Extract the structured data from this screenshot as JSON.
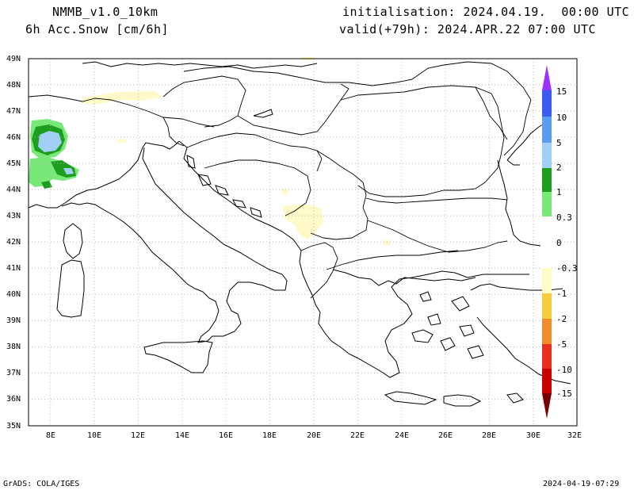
{
  "header": {
    "model": "NMMB_v1.0_10km",
    "variable": "6h Acc.Snow [cm/6h]",
    "init": "initialisation: 2024.04.19.  00:00 UTC",
    "valid": "valid(+79h): 2024.APR.22 07:00 UTC"
  },
  "footer": {
    "left": "GrADS: COLA/IGES",
    "right": "2024-04-19-07:29"
  },
  "map": {
    "lat_labels": [
      "49N",
      "48N",
      "47N",
      "46N",
      "45N",
      "44N",
      "43N",
      "42N",
      "41N",
      "40N",
      "39N",
      "38N",
      "37N",
      "36N",
      "35N"
    ],
    "lon_labels": [
      "8E",
      "10E",
      "12E",
      "14E",
      "16E",
      "18E",
      "20E",
      "22E",
      "24E",
      "26E",
      "28E",
      "30E",
      "32E"
    ]
  },
  "colorbar": {
    "labels": [
      "15",
      "10",
      "5",
      "2",
      "1",
      "0.3",
      "0",
      "-0.3",
      "-1",
      "-2",
      "-5",
      "-10",
      "-15"
    ],
    "colors": {
      "top_arrow": "#9b30ff",
      "c15": "#3c5cf0",
      "c10": "#5b9cf0",
      "c5": "#a0d0f8",
      "c2": "#1e9e1e",
      "c1": "#78e878",
      "c03": "#ffffff",
      "cm03": "#fffcc8",
      "cm1": "#f8cc40",
      "cm2": "#f08c30",
      "cm5": "#e83020",
      "cm10": "#c80000",
      "bottom_arrow": "#780000"
    }
  },
  "snow_colors": {
    "light": "#fff8c8",
    "green_light": "#78e878",
    "green_dark": "#1e9e1e",
    "blue_light": "#a0d0f8"
  }
}
